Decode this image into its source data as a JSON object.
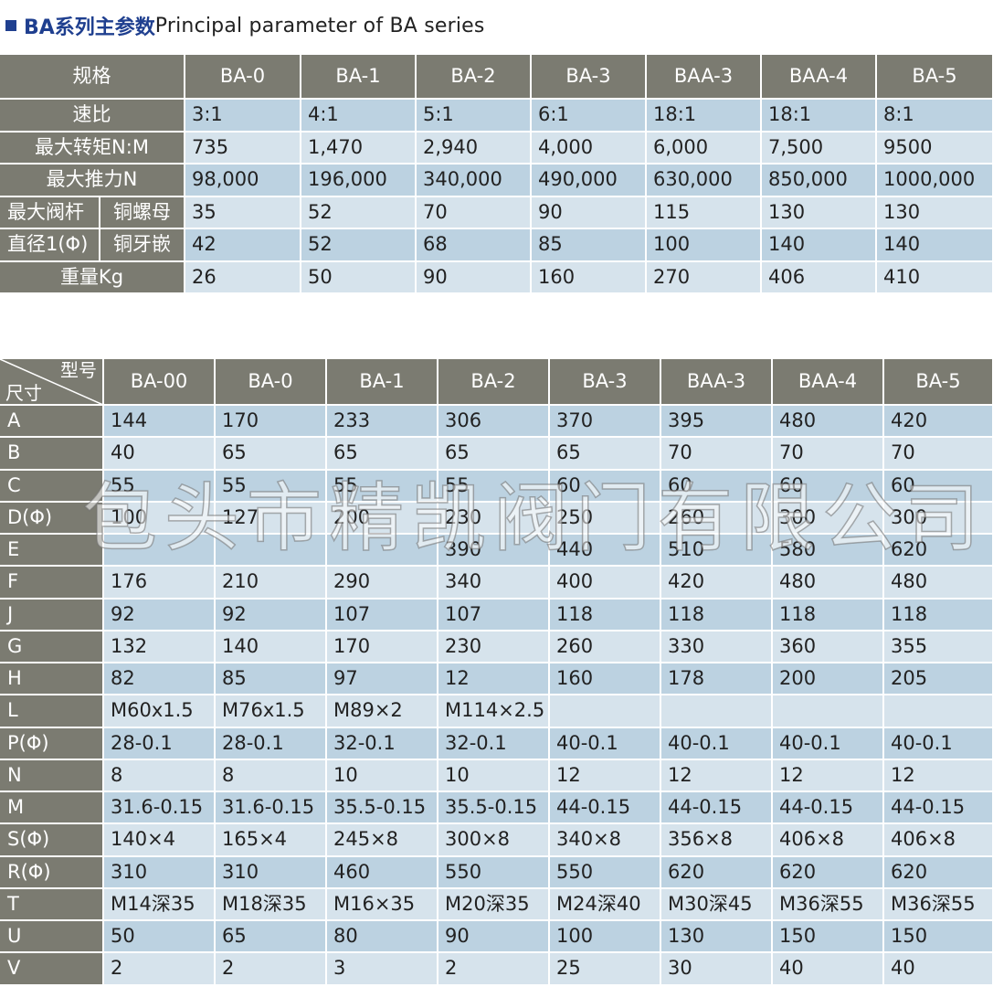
{
  "header": {
    "title_cn": "BA系列主参数",
    "title_en": "Principal parameter of BA series"
  },
  "table1": {
    "header_label": "规格",
    "models": [
      "BA-0",
      "BA-1",
      "BA-2",
      "BA-3",
      "BAA-3",
      "BAA-4",
      "BA-5"
    ],
    "rows": [
      {
        "label": "速比",
        "values": [
          "3:1",
          "4:1",
          "5:1",
          "6:1",
          "18:1",
          "18:1",
          "8:1"
        ]
      },
      {
        "label": "最大转矩N:M",
        "values": [
          "735",
          "1,470",
          "2,940",
          "4,000",
          "6,000",
          "7,500",
          "9500"
        ]
      },
      {
        "label": "最大推力N",
        "values": [
          "98,000",
          "196,000",
          "340,000",
          "490,000",
          "630,000",
          "850,000",
          "1000,000"
        ]
      },
      {
        "group": "最大阀杆",
        "label": "铜螺母",
        "values": [
          "35",
          "52",
          "70",
          "90",
          "115",
          "130",
          "130"
        ]
      },
      {
        "group": "直径1(Φ)",
        "label": "铜牙嵌",
        "values": [
          "42",
          "52",
          "68",
          "85",
          "100",
          "140",
          "140"
        ]
      },
      {
        "label": "重量Kg",
        "values": [
          "26",
          "50",
          "90",
          "160",
          "270",
          "406",
          "410"
        ]
      }
    ]
  },
  "table2": {
    "corner_top": "型号",
    "corner_bottom": "尺寸",
    "models": [
      "BA-00",
      "BA-0",
      "BA-1",
      "BA-2",
      "BA-3",
      "BAA-3",
      "BAA-4",
      "BA-5"
    ],
    "rows": [
      {
        "label": "A",
        "values": [
          "144",
          "170",
          "233",
          "306",
          "370",
          "395",
          "480",
          "420"
        ]
      },
      {
        "label": "B",
        "values": [
          "40",
          "65",
          "65",
          "65",
          "65",
          "70",
          "70",
          "70"
        ]
      },
      {
        "label": "C",
        "values": [
          "55",
          "55",
          "55",
          "55",
          "60",
          "60",
          "60",
          "60"
        ]
      },
      {
        "label": "D(Φ)",
        "values": [
          "100",
          "127",
          "200",
          "230",
          "250",
          "260",
          "300",
          "300"
        ]
      },
      {
        "label": "E",
        "values": [
          "",
          "",
          "",
          "390",
          "440",
          "510",
          "580",
          "620"
        ]
      },
      {
        "label": "F",
        "values": [
          "176",
          "210",
          "290",
          "340",
          "400",
          "420",
          "480",
          "480"
        ]
      },
      {
        "label": "J",
        "values": [
          "92",
          "92",
          "107",
          "107",
          "118",
          "118",
          "118",
          "118"
        ]
      },
      {
        "label": "G",
        "values": [
          "132",
          "140",
          "170",
          "230",
          "260",
          "330",
          "360",
          "355"
        ]
      },
      {
        "label": "H",
        "values": [
          "82",
          "85",
          "97",
          "12",
          "160",
          "178",
          "200",
          "205"
        ]
      },
      {
        "label": "L",
        "values": [
          "M60x1.5",
          "M76x1.5",
          "M89×2",
          "M114×2.5",
          "",
          "",
          "",
          ""
        ]
      },
      {
        "label": "P(Φ)",
        "values": [
          "28-0.1",
          "28-0.1",
          "32-0.1",
          "32-0.1",
          "40-0.1",
          "40-0.1",
          "40-0.1",
          "40-0.1"
        ]
      },
      {
        "label": "N",
        "values": [
          "8",
          "8",
          "10",
          "10",
          "12",
          "12",
          "12",
          "12"
        ]
      },
      {
        "label": "M",
        "values": [
          "31.6-0.15",
          "31.6-0.15",
          "35.5-0.15",
          "35.5-0.15",
          "44-0.15",
          "44-0.15",
          "44-0.15",
          "44-0.15"
        ]
      },
      {
        "label": "S(Φ)",
        "values": [
          "140×4",
          "165×4",
          "245×8",
          "300×8",
          "340×8",
          "356×8",
          "406×8",
          "406×8"
        ]
      },
      {
        "label": "R(Φ)",
        "values": [
          "310",
          "310",
          "460",
          "550",
          "550",
          "620",
          "620",
          "620"
        ]
      },
      {
        "label": "T",
        "values": [
          "M14深35",
          "M18深35",
          "M16×35",
          "M20深35",
          "M24深40",
          "M30深45",
          "M36深55",
          "M36深55"
        ]
      },
      {
        "label": "U",
        "values": [
          "50",
          "65",
          "80",
          "90",
          "100",
          "130",
          "150",
          "150"
        ]
      },
      {
        "label": "V",
        "values": [
          "2",
          "2",
          "3",
          "2",
          "25",
          "30",
          "40",
          "40"
        ]
      }
    ]
  },
  "watermark": "包头市精凯阀门有限公司"
}
